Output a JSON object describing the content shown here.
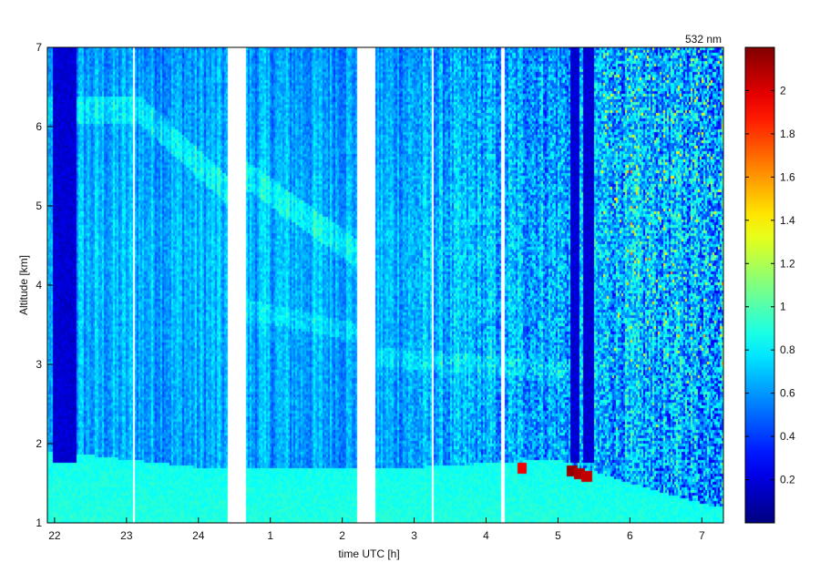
{
  "chart_data": {
    "type": "heatmap",
    "title": "532 nm",
    "xlabel": "time UTC [h]",
    "ylabel": "Altitude [km]",
    "x_ticks": [
      "22",
      "23",
      "24",
      "1",
      "2",
      "3",
      "4",
      "5",
      "6",
      "7"
    ],
    "y_ticks": [
      "1",
      "2",
      "3",
      "4",
      "5",
      "6",
      "7"
    ],
    "xlim": [
      21.9,
      31.3
    ],
    "ylim": [
      1,
      7
    ],
    "colorbar": {
      "colormap": "jet",
      "ticks": [
        "0.2",
        "0.4",
        "0.6",
        "0.8",
        "1",
        "1.2",
        "1.4",
        "1.6",
        "1.8",
        "2"
      ],
      "range": [
        0,
        2.2
      ]
    },
    "data_gaps_hours": [
      [
        24.4,
        24.65
      ],
      [
        26.2,
        26.45
      ],
      [
        27.25,
        27.28
      ],
      [
        28.22,
        28.25
      ],
      [
        23.1,
        23.12
      ]
    ],
    "features": {
      "clean_column_hours": [
        [
          21.98,
          22.3
        ],
        [
          29.17,
          29.3
        ],
        [
          29.36,
          29.5
        ]
      ],
      "aerosol_layer_top_km": [
        [
          22.0,
          1.9
        ],
        [
          24.0,
          1.7
        ],
        [
          27.0,
          1.7
        ],
        [
          29.0,
          1.8
        ],
        [
          30.0,
          1.5
        ],
        [
          31.2,
          1.2
        ]
      ],
      "elevated_layer_km": [
        [
          23.2,
          6.2
        ],
        [
          24.4,
          5.2
        ],
        [
          24.65,
          5.4
        ],
        [
          26.2,
          4.4
        ]
      ],
      "mid_layer_km": [
        [
          24.65,
          3.7
        ],
        [
          26.2,
          3.4
        ],
        [
          26.45,
          3.1
        ],
        [
          29.2,
          2.9
        ]
      ],
      "high_backscatter_points": [
        [
          29.2,
          1.65,
          2.15
        ],
        [
          29.3,
          1.62,
          2.1
        ],
        [
          29.4,
          1.6,
          2.05
        ],
        [
          28.5,
          1.7,
          1.95
        ]
      ]
    }
  }
}
